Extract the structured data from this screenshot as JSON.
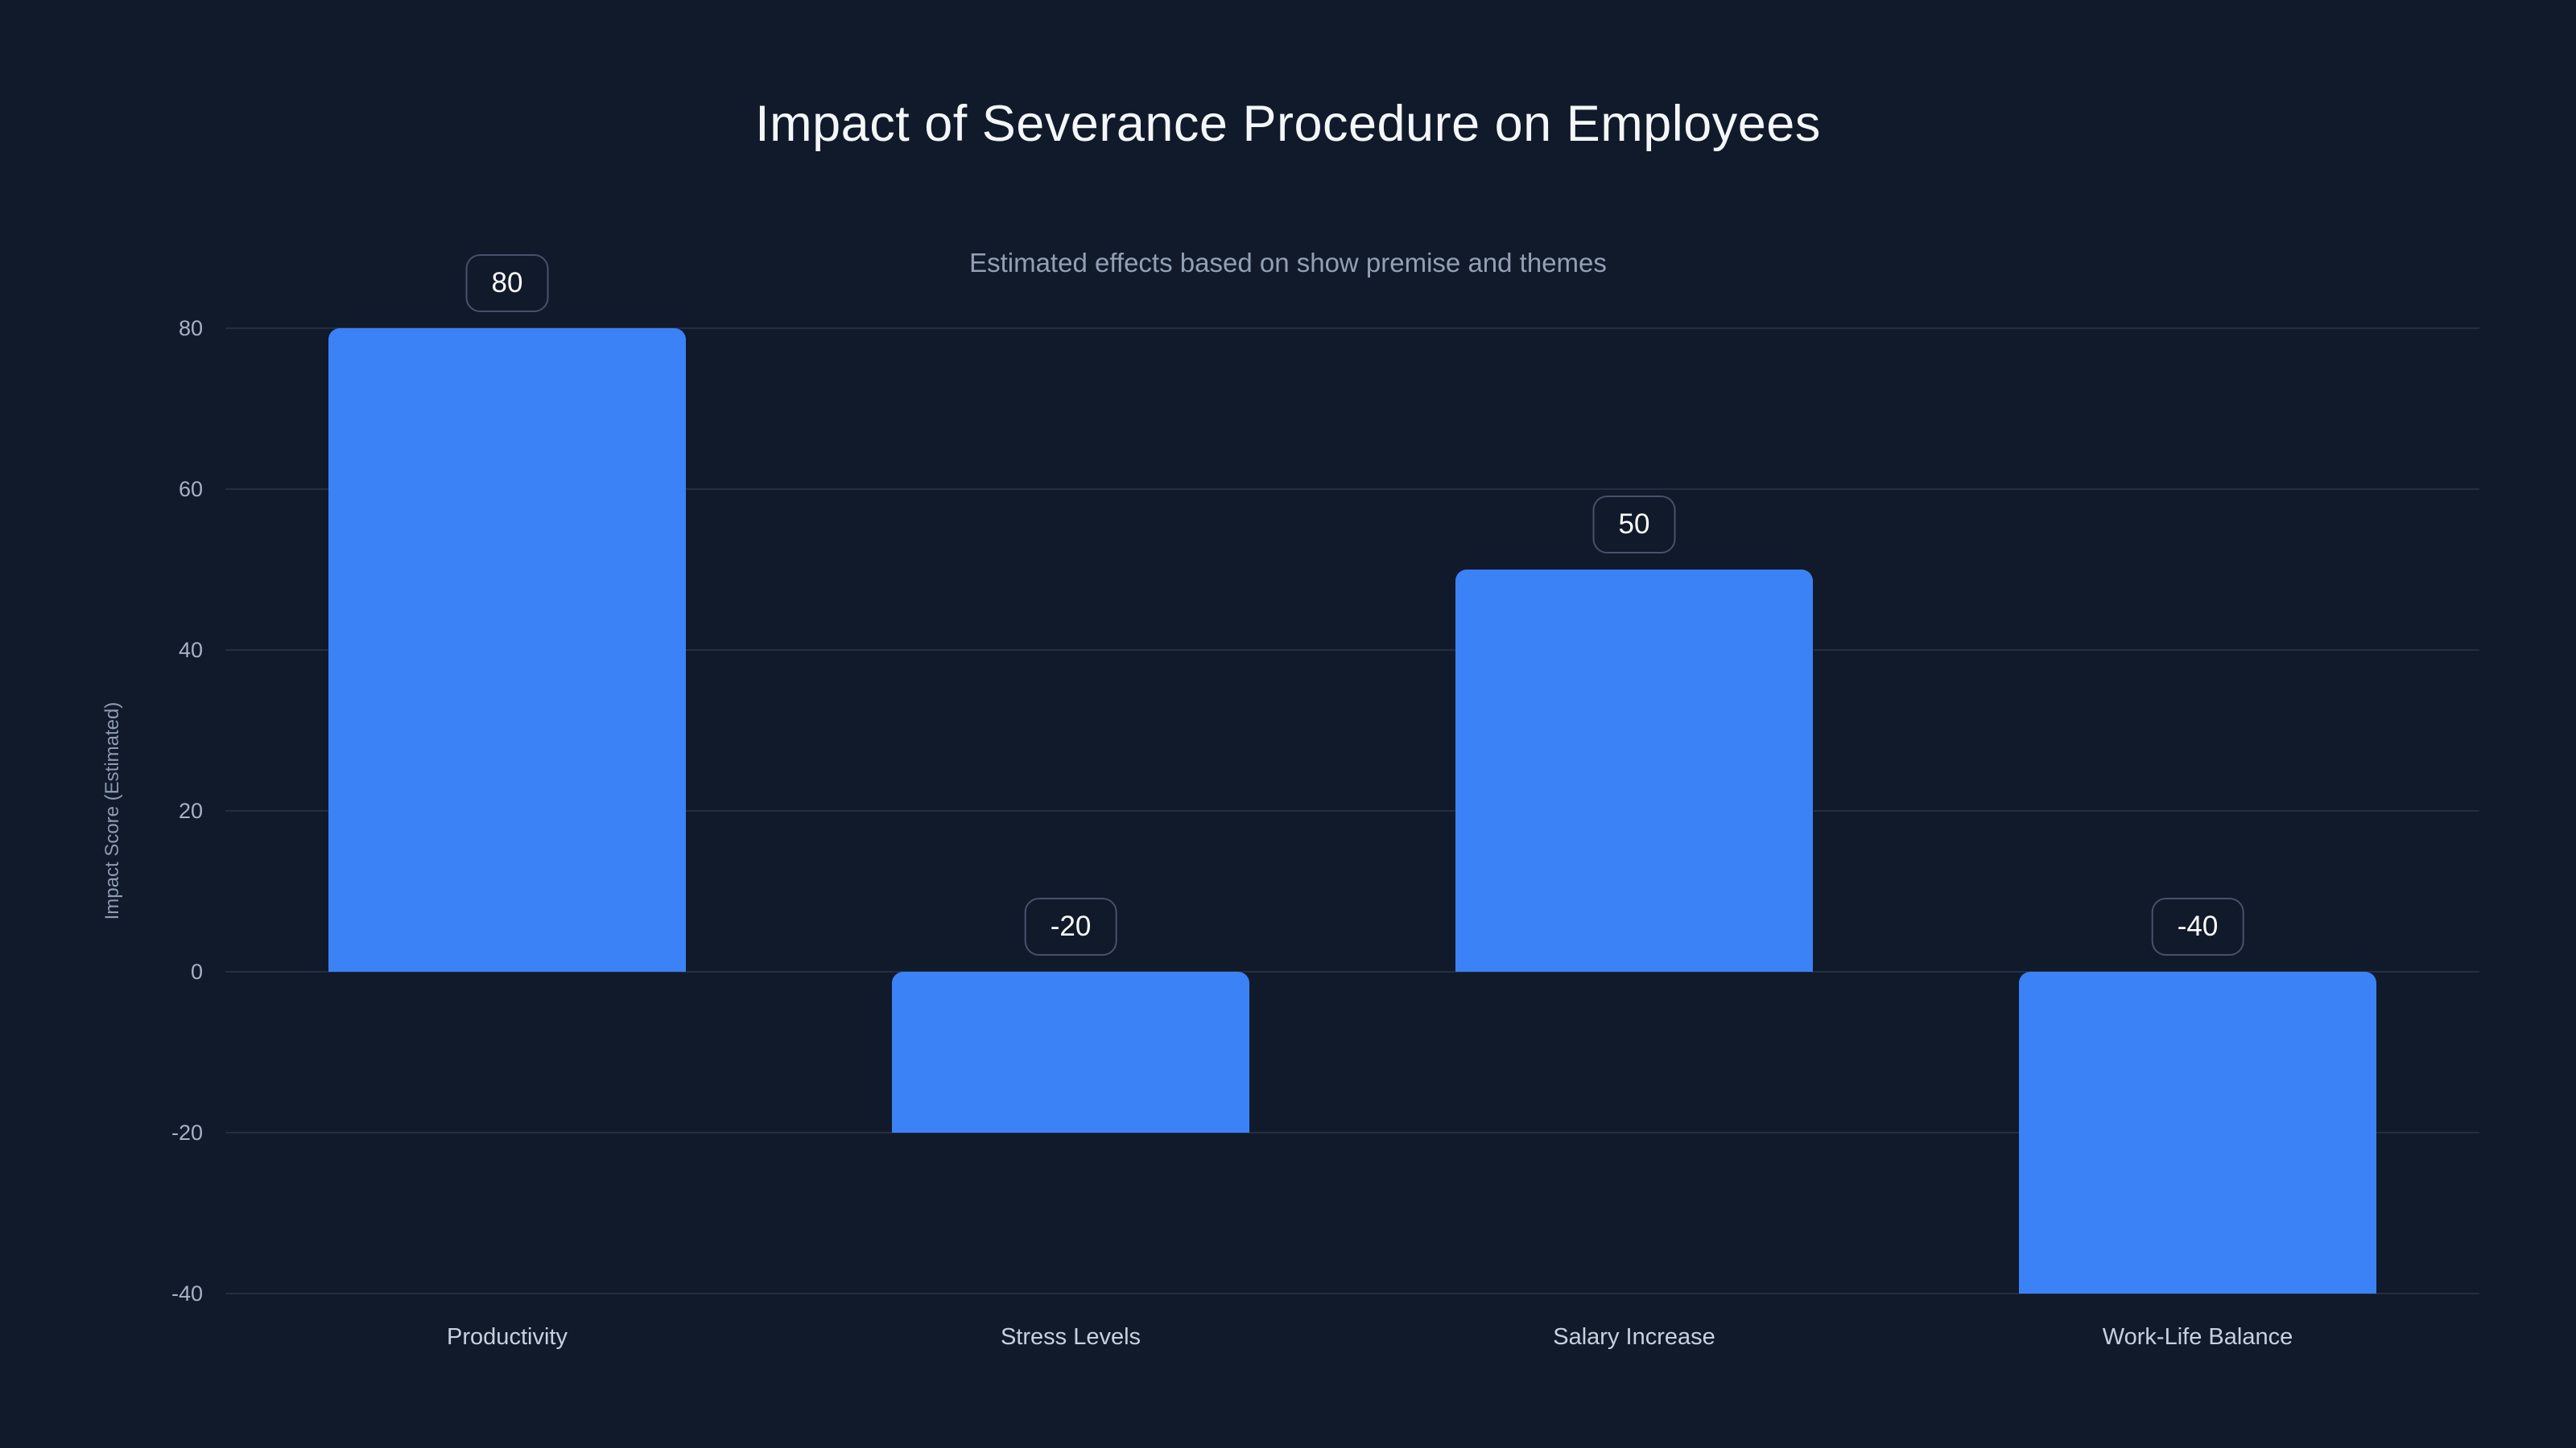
{
  "chart": {
    "title": "Impact of Severance Procedure on Employees",
    "subtitle": "Estimated effects based on show premise and themes",
    "ylabel": "Impact Score (Estimated)"
  },
  "chart_data": {
    "type": "bar",
    "title": "Impact of Severance Procedure on Employees",
    "subtitle": "Estimated effects based on show premise and themes",
    "categories": [
      "Productivity",
      "Stress Levels",
      "Salary Increase",
      "Work-Life Balance"
    ],
    "values": [
      80,
      -20,
      50,
      -40
    ],
    "value_labels": [
      "80",
      "-20",
      "50",
      "-40"
    ],
    "xlabel": "",
    "ylabel": "Impact Score (Estimated)",
    "yticks": [
      80,
      60,
      40,
      20,
      0,
      -20,
      -40
    ],
    "ylim": [
      -40,
      80
    ],
    "grid": true,
    "legend": false,
    "colors": {
      "background": "#111A2B",
      "bar": "#3B82F6",
      "gridline": "rgba(148,163,184,0.15)",
      "title_text": "#F4F7FA",
      "subtitle_text": "#93A0B4",
      "tick_text": "#A7B2C4",
      "category_text": "#C7D0DD",
      "badge_border": "#46526A",
      "badge_text": "#FFFFFF"
    }
  }
}
